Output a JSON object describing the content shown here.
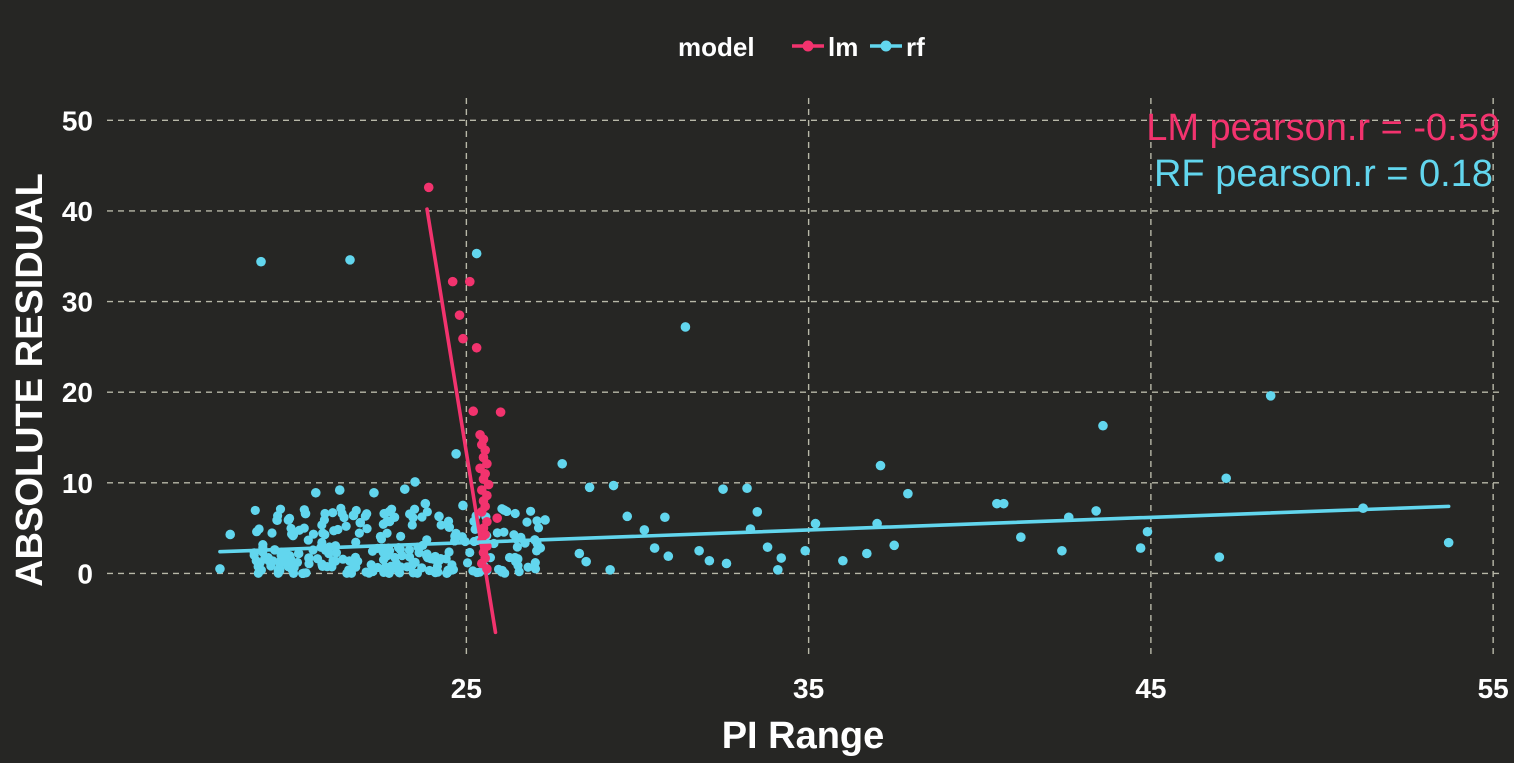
{
  "colors": {
    "background": "#262624",
    "lm": "#f2336e",
    "rf": "#62d6ee",
    "text": "#ffffff",
    "grid": "#b8b8a8"
  },
  "chart_data": {
    "type": "scatter",
    "xlabel": "PI Range",
    "ylabel": "ABSOLUTE RESIDUAL",
    "xlim": [
      14.5,
      55.2
    ],
    "ylim": [
      -9,
      55
    ],
    "xticks": [
      25,
      35,
      45,
      55
    ],
    "yticks": [
      0,
      10,
      20,
      30,
      40,
      50
    ],
    "grid": true,
    "legend": {
      "title": "model",
      "position": "top-center",
      "entries": [
        "lm",
        "rf"
      ]
    },
    "annotations": [
      {
        "series": "lm",
        "text": "LM pearson.r = -0.59",
        "position": "top-right"
      },
      {
        "series": "rf",
        "text": "RF pearson.r = 0.18",
        "position": "top-right"
      }
    ],
    "series": [
      {
        "name": "lm",
        "points": [
          [
            23.9,
            42.6
          ],
          [
            24.6,
            32.2
          ],
          [
            25.1,
            32.2
          ],
          [
            24.8,
            28.5
          ],
          [
            24.9,
            25.9
          ],
          [
            25.3,
            24.9
          ],
          [
            25.2,
            17.9
          ],
          [
            26.0,
            17.8
          ],
          [
            25.4,
            15.3
          ],
          [
            25.5,
            14.8
          ],
          [
            25.45,
            14.2
          ],
          [
            25.55,
            13.6
          ],
          [
            25.5,
            12.8
          ],
          [
            25.6,
            12.1
          ],
          [
            25.4,
            11.6
          ],
          [
            25.55,
            11.0
          ],
          [
            25.5,
            10.4
          ],
          [
            25.65,
            9.8
          ],
          [
            25.45,
            9.2
          ],
          [
            25.6,
            8.6
          ],
          [
            25.5,
            8.0
          ],
          [
            25.55,
            7.4
          ],
          [
            25.45,
            6.8
          ],
          [
            25.9,
            6.1
          ],
          [
            25.6,
            5.7
          ],
          [
            25.5,
            5.0
          ],
          [
            25.55,
            4.3
          ],
          [
            25.45,
            3.6
          ],
          [
            25.6,
            3.0
          ],
          [
            25.5,
            2.3
          ],
          [
            25.55,
            1.7
          ],
          [
            25.45,
            1.1
          ],
          [
            25.6,
            0.5
          ]
        ],
        "fit": [
          [
            23.85,
            40.2
          ],
          [
            25.85,
            -6.5
          ]
        ]
      },
      {
        "name": "rf",
        "points": [
          [
            17.8,
            0.5
          ],
          [
            18.1,
            4.3
          ],
          [
            19.0,
            34.4
          ],
          [
            21.6,
            34.6
          ],
          [
            25.3,
            35.3
          ],
          [
            31.4,
            27.2
          ],
          [
            48.5,
            19.6
          ],
          [
            43.6,
            16.3
          ],
          [
            37.1,
            11.9
          ],
          [
            47.2,
            10.5
          ],
          [
            27.8,
            12.1
          ],
          [
            24.7,
            13.2
          ],
          [
            23.5,
            10.1
          ],
          [
            33.2,
            9.4
          ],
          [
            28.6,
            9.5
          ],
          [
            29.3,
            9.7
          ],
          [
            32.5,
            9.3
          ],
          [
            37.9,
            8.8
          ],
          [
            40.5,
            7.7
          ],
          [
            40.7,
            7.7
          ],
          [
            51.2,
            7.2
          ],
          [
            43.4,
            6.9
          ],
          [
            42.6,
            6.2
          ],
          [
            53.7,
            3.4
          ],
          [
            42.4,
            2.5
          ],
          [
            44.9,
            4.6
          ],
          [
            44.7,
            2.8
          ],
          [
            47.0,
            1.8
          ],
          [
            41.2,
            4.0
          ],
          [
            36.0,
            1.4
          ],
          [
            36.7,
            2.2
          ],
          [
            37.5,
            3.1
          ],
          [
            37.0,
            5.5
          ],
          [
            35.2,
            5.5
          ],
          [
            34.1,
            0.4
          ],
          [
            34.9,
            2.5
          ],
          [
            34.2,
            1.7
          ],
          [
            33.5,
            6.8
          ],
          [
            33.8,
            2.9
          ],
          [
            33.3,
            4.9
          ],
          [
            32.6,
            1.1
          ],
          [
            32.1,
            1.4
          ],
          [
            31.8,
            2.5
          ],
          [
            30.8,
            6.2
          ],
          [
            30.9,
            1.9
          ],
          [
            30.2,
            4.8
          ],
          [
            29.7,
            6.3
          ],
          [
            30.5,
            2.8
          ],
          [
            29.2,
            0.4
          ],
          [
            28.5,
            1.3
          ],
          [
            28.3,
            2.2
          ],
          [
            27.3,
            5.9
          ],
          [
            27.0,
            3.7
          ],
          [
            26.5,
            1.6
          ],
          [
            26.1,
            7.0
          ],
          [
            21.3,
            9.2
          ],
          [
            20.6,
            8.9
          ],
          [
            20.3,
            6.6
          ],
          [
            19.8,
            5.9
          ],
          [
            19.4,
            2.6
          ],
          [
            19.6,
            1.3
          ],
          [
            19.9,
            0.5
          ],
          [
            20.1,
            2.2
          ],
          [
            20.4,
            1.7
          ],
          [
            20.8,
            0.8
          ],
          [
            21.0,
            2.9
          ],
          [
            21.7,
            6.4
          ],
          [
            21.9,
            5.6
          ],
          [
            22.3,
            8.9
          ],
          [
            22.6,
            6.6
          ],
          [
            22.9,
            6.2
          ],
          [
            23.2,
            9.3
          ],
          [
            23.8,
            7.7
          ],
          [
            24.2,
            6.3
          ],
          [
            24.5,
            5.1
          ],
          [
            24.9,
            7.5
          ]
        ],
        "cluster": {
          "x_range": [
            18.8,
            27.4
          ],
          "y_range": [
            0,
            7.2
          ],
          "count": 240
        },
        "fit": [
          [
            17.8,
            2.4
          ],
          [
            53.7,
            7.4
          ]
        ]
      }
    ]
  }
}
